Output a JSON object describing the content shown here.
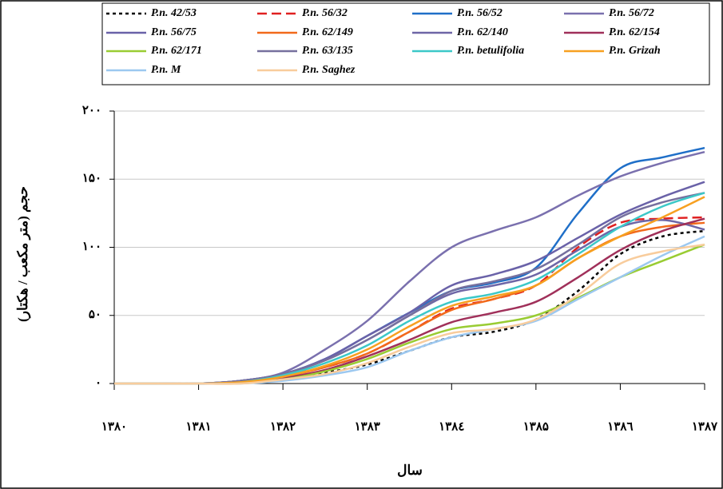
{
  "chart_data": {
    "type": "line",
    "ylabel": "حجم (متر مكعب / هكتار)",
    "xlabel": "سال",
    "x": [
      1380,
      1380.5,
      1381,
      1381.5,
      1382,
      1382.5,
      1383,
      1383.5,
      1384,
      1384.5,
      1385,
      1385.5,
      1386,
      1386.5,
      1387
    ],
    "xlim": [
      1380,
      1387
    ],
    "xticks": [
      {
        "value": 1380,
        "label": "۱۳۸۰"
      },
      {
        "value": 1381,
        "label": "۱۳۸۱"
      },
      {
        "value": 1382,
        "label": "۱۳۸۲"
      },
      {
        "value": 1383,
        "label": "۱۳۸۳"
      },
      {
        "value": 1384,
        "label": "۱۳۸٤"
      },
      {
        "value": 1385,
        "label": "۱۳۸۵"
      },
      {
        "value": 1386,
        "label": "۱۳۸٦"
      },
      {
        "value": 1387,
        "label": "۱۳۸۷"
      }
    ],
    "ylim": [
      0,
      200
    ],
    "yticks": [
      {
        "value": 0,
        "label": "٠"
      },
      {
        "value": 50,
        "label": "۵٠"
      },
      {
        "value": 100,
        "label": "۱۰۰"
      },
      {
        "value": 150,
        "label": "۱۵۰"
      },
      {
        "value": 200,
        "label": "۲۰۰"
      }
    ],
    "grid": true,
    "legend": "top",
    "series": [
      {
        "name": "P.n. 42/53",
        "color": "#000000",
        "dash": "dotted",
        "values": [
          0,
          0,
          0,
          1,
          4,
          8,
          14,
          24,
          34,
          38,
          47,
          68,
          95,
          108,
          112
        ]
      },
      {
        "name": "P.n. 56/32",
        "color": "#e02020",
        "dash": "dashed",
        "values": [
          0,
          0,
          0,
          1,
          6,
          12,
          22,
          38,
          55,
          62,
          72,
          100,
          118,
          121,
          122
        ]
      },
      {
        "name": "P.n. 56/52",
        "color": "#1f6fc8",
        "values": [
          0,
          0,
          0,
          2,
          7,
          18,
          35,
          52,
          68,
          74,
          85,
          125,
          158,
          166,
          173
        ]
      },
      {
        "name": "P.n. 56/72",
        "color": "#7a70ae",
        "values": [
          0,
          0,
          0,
          2,
          8,
          25,
          46,
          75,
          100,
          112,
          122,
          138,
          152,
          162,
          170
        ]
      },
      {
        "name": "P.n. 56/75",
        "color": "#6a62a8",
        "values": [
          0,
          0,
          0,
          2,
          7,
          18,
          35,
          52,
          72,
          80,
          90,
          107,
          124,
          137,
          148
        ]
      },
      {
        "name": "P.n. 62/149",
        "color": "#f26a1b",
        "values": [
          0,
          0,
          0,
          1,
          5,
          12,
          22,
          38,
          54,
          62,
          72,
          92,
          108,
          115,
          118
        ]
      },
      {
        "name": "P.n. 62/140",
        "color": "#6e66a6",
        "values": [
          0,
          0,
          0,
          2,
          7,
          17,
          32,
          50,
          66,
          72,
          80,
          98,
          115,
          120,
          113
        ]
      },
      {
        "name": "P.n. 62/154",
        "color": "#a0305a",
        "values": [
          0,
          0,
          0,
          1,
          4,
          10,
          20,
          32,
          45,
          52,
          60,
          78,
          98,
          112,
          121
        ]
      },
      {
        "name": "P.n. 62/171",
        "color": "#99cc33",
        "values": [
          0,
          0,
          0,
          1,
          3,
          9,
          18,
          30,
          40,
          44,
          50,
          63,
          78,
          90,
          102
        ]
      },
      {
        "name": "P.n. 63/135",
        "color": "#76709e",
        "values": [
          0,
          0,
          0,
          2,
          7,
          17,
          32,
          50,
          68,
          75,
          84,
          102,
          122,
          133,
          140
        ]
      },
      {
        "name": "P.n. betulifolia",
        "color": "#3cc8c8",
        "values": [
          0,
          0,
          0,
          1,
          6,
          15,
          28,
          46,
          60,
          66,
          76,
          95,
          115,
          130,
          140
        ]
      },
      {
        "name": "P.n. Grizah",
        "color": "#f7a020",
        "values": [
          0,
          0,
          0,
          1,
          5,
          13,
          25,
          42,
          57,
          64,
          72,
          92,
          108,
          122,
          137
        ]
      },
      {
        "name": "P.n. M",
        "color": "#9cc8f0",
        "values": [
          0,
          0,
          0,
          0,
          2,
          6,
          12,
          24,
          34,
          40,
          46,
          62,
          78,
          94,
          108
        ]
      },
      {
        "name": "P.n. Saghez",
        "color": "#f8cc9c",
        "values": [
          0,
          0,
          0,
          0,
          3,
          7,
          15,
          27,
          37,
          40,
          47,
          65,
          88,
          97,
          102
        ]
      }
    ]
  }
}
